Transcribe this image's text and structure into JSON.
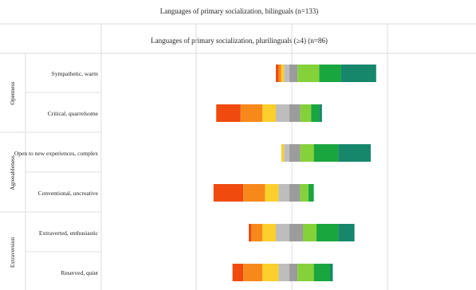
{
  "chart_data": {
    "type": "bar",
    "stacked": "diverging",
    "headers": [
      "Languages of primary socialization, bilinguals (n=133)",
      "Languages of primary socialization, plurilinguals (≥4) (n=86)"
    ],
    "groups": [
      {
        "label": "Openness",
        "items": [
          "Sympathetic, warm",
          "Critical, quarrelsome"
        ]
      },
      {
        "label": "Agreeableness",
        "items": [
          "Open to new experiences, complex",
          "Conventional, uncreative"
        ]
      },
      {
        "label": "Extraversion",
        "items": [
          "Extraverted, enthusiastic",
          "Reserved, quiet"
        ]
      }
    ],
    "segment_colors": [
      "#f04a0f",
      "#f7891b",
      "#fbcf2c",
      "#bdbdbd",
      "#9c9c9c",
      "#85d13a",
      "#1aa63e",
      "#17876b"
    ],
    "bars": [
      {
        "label": "Sympathetic, warm",
        "segments": [
          1,
          1,
          1,
          2,
          3,
          8,
          8,
          13
        ]
      },
      {
        "label": "Critical, quarrelsome",
        "segments": [
          9,
          8,
          5,
          5,
          4,
          4,
          3,
          1
        ]
      },
      {
        "label": "Open to new experiences, complex",
        "segments": [
          0,
          0,
          1,
          2,
          4,
          5,
          9,
          12
        ]
      },
      {
        "label": "Conventional, uncreative",
        "segments": [
          11,
          8,
          5,
          4,
          4,
          3,
          2,
          0
        ]
      },
      {
        "label": "Extraverted, enthusiastic",
        "segments": [
          1,
          4,
          5,
          5,
          5,
          5,
          8,
          6
        ]
      },
      {
        "label": "Reserved, quiet",
        "segments": [
          4,
          7,
          6,
          4,
          3,
          6,
          6,
          1
        ]
      }
    ],
    "grid": true,
    "legend": "none"
  }
}
